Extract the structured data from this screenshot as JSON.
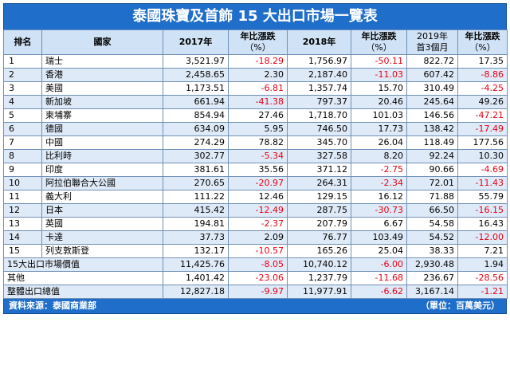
{
  "title": "泰國珠寶及首飾 15 大出口市場一覽表",
  "headers": {
    "rank": "排名",
    "country": "國家",
    "y2017": "2017年",
    "chg2017": [
      "年比漲跌",
      "（%）"
    ],
    "y2018": "2018年",
    "chg2018": [
      "年比漲跌",
      "（%）"
    ],
    "y2019": [
      "2019年",
      "首3個月"
    ],
    "chg2019": [
      "年比漲跌",
      "（%）"
    ]
  },
  "rows": [
    {
      "rank": "1",
      "country": "瑞士",
      "v2017": "3,521.97",
      "c2017": "-18.29",
      "v2018": "1,756.97",
      "c2018": "-50.11",
      "v2019": "822.72",
      "c2019": "17.35"
    },
    {
      "rank": "2",
      "country": "香港",
      "v2017": "2,458.65",
      "c2017": "2.30",
      "v2018": "2,187.40",
      "c2018": "-11.03",
      "v2019": "607.42",
      "c2019": "-8.86"
    },
    {
      "rank": "3",
      "country": "美國",
      "v2017": "1,173.51",
      "c2017": "-6.81",
      "v2018": "1,357.74",
      "c2018": "15.70",
      "v2019": "310.49",
      "c2019": "-4.25"
    },
    {
      "rank": "4",
      "country": "新加坡",
      "v2017": "661.94",
      "c2017": "-41.38",
      "v2018": "797.37",
      "c2018": "20.46",
      "v2019": "245.64",
      "c2019": "49.26"
    },
    {
      "rank": "5",
      "country": "柬埔寨",
      "v2017": "854.94",
      "c2017": "27.46",
      "v2018": "1,718.70",
      "c2018": "101.03",
      "v2019": "146.56",
      "c2019": "-47.21"
    },
    {
      "rank": "6",
      "country": "德國",
      "v2017": "634.09",
      "c2017": "5.95",
      "v2018": "746.50",
      "c2018": "17.73",
      "v2019": "138.42",
      "c2019": "-17.49"
    },
    {
      "rank": "7",
      "country": "中國",
      "v2017": "274.29",
      "c2017": "78.82",
      "v2018": "345.70",
      "c2018": "26.04",
      "v2019": "118.49",
      "c2019": "177.56"
    },
    {
      "rank": "8",
      "country": "比利時",
      "v2017": "302.77",
      "c2017": "-5.34",
      "v2018": "327.58",
      "c2018": "8.20",
      "v2019": "92.24",
      "c2019": "10.30"
    },
    {
      "rank": "9",
      "country": "印度",
      "v2017": "381.61",
      "c2017": "35.56",
      "v2018": "371.12",
      "c2018": "-2.75",
      "v2019": "90.66",
      "c2019": "-4.69"
    },
    {
      "rank": "10",
      "country": "阿拉伯聯合大公國",
      "v2017": "270.65",
      "c2017": "-20.97",
      "v2018": "264.31",
      "c2018": "-2.34",
      "v2019": "72.01",
      "c2019": "-11.43"
    },
    {
      "rank": "11",
      "country": "義大利",
      "v2017": "111.22",
      "c2017": "12.46",
      "v2018": "129.15",
      "c2018": "16.12",
      "v2019": "71.88",
      "c2019": "55.79"
    },
    {
      "rank": "12",
      "country": "日本",
      "v2017": "415.42",
      "c2017": "-12.49",
      "v2018": "287.75",
      "c2018": "-30.73",
      "v2019": "66.50",
      "c2019": "-16.15"
    },
    {
      "rank": "13",
      "country": "英國",
      "v2017": "194.81",
      "c2017": "-2.37",
      "v2018": "207.79",
      "c2018": "6.67",
      "v2019": "54.58",
      "c2019": "16.43"
    },
    {
      "rank": "14",
      "country": "卡達",
      "v2017": "37.73",
      "c2017": "2.09",
      "v2018": "76.77",
      "c2018": "103.49",
      "v2019": "54.52",
      "c2019": "-12.00"
    },
    {
      "rank": "15",
      "country": "列支敦斯登",
      "v2017": "132.17",
      "c2017": "-10.57",
      "v2018": "165.26",
      "c2018": "25.04",
      "v2019": "38.33",
      "c2019": "7.21"
    }
  ],
  "summary": [
    {
      "label": "15大出口市場價值",
      "v2017": "11,425.76",
      "c2017": "-8.05",
      "v2018": "10,740.12",
      "c2018": "-6.00",
      "v2019": "2,930.48",
      "c2019": "1.94"
    },
    {
      "label": "其他",
      "v2017": "1,401.42",
      "c2017": "-23.06",
      "v2018": "1,237.79",
      "c2018": "-11.68",
      "v2019": "236.67",
      "c2019": "-28.56"
    },
    {
      "label": "整體出口總值",
      "v2017": "12,827.18",
      "c2017": "-9.97",
      "v2018": "11,977.91",
      "c2018": "-6.62",
      "v2019": "3,167.14",
      "c2019": "-1.21"
    }
  ],
  "footer": {
    "source": "資料來源：泰國商業部",
    "unit": "（單位：百萬美元）"
  },
  "colors": {
    "header_bg": "#1f6ec9",
    "negative": "#e60012",
    "row_alt": "#dfeaf8"
  }
}
